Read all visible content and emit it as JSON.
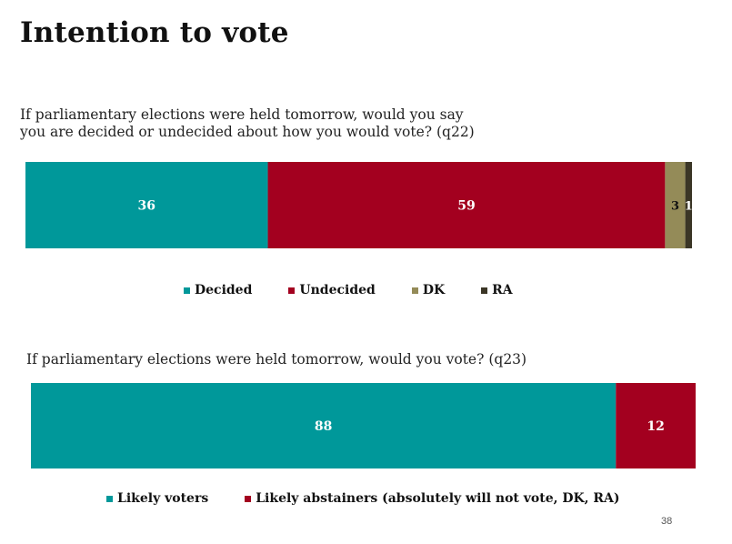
{
  "title": "Intention to vote",
  "page_number": "38",
  "chart_data": [
    {
      "type": "bar",
      "orientation": "horizontal-stacked",
      "title": "If parliamentary elections were held tomorrow, would you say you are decided or undecided about how you would vote? (q22)",
      "title_lines": [
        "If parliamentary elections were held tomorrow, would you say",
        "you are decided or undecided about how you would vote? (q22)"
      ],
      "categories": [
        ""
      ],
      "series": [
        {
          "name": "Decided",
          "values": [
            36
          ],
          "color": "#00989a",
          "label": "36"
        },
        {
          "name": "Undecided",
          "values": [
            59
          ],
          "color": "#a3001f",
          "label": "59"
        },
        {
          "name": "DK",
          "values": [
            3
          ],
          "color": "#948b58",
          "label": "3"
        },
        {
          "name": "RA",
          "values": [
            1
          ],
          "color": "#3b3626",
          "label": "1"
        }
      ],
      "legend_position": "bottom"
    },
    {
      "type": "bar",
      "orientation": "horizontal-stacked",
      "title": "If parliamentary elections were held tomorrow, would you vote? (q23)",
      "title_lines": [
        "If parliamentary elections were held tomorrow, would you vote? (q23)"
      ],
      "categories": [
        ""
      ],
      "series": [
        {
          "name": "Likely voters",
          "values": [
            88
          ],
          "color": "#00989a",
          "label": "88"
        },
        {
          "name": "Likely abstainers (absolutely will not vote, DK, RA)",
          "values": [
            12
          ],
          "color": "#a3001f",
          "label": "12"
        }
      ],
      "legend_position": "bottom"
    }
  ]
}
